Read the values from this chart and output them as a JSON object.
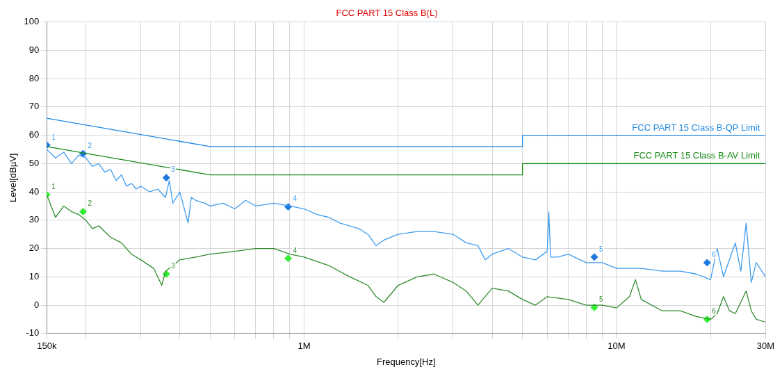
{
  "chart_data": {
    "type": "line",
    "title": "FCC PART 15 Class B(L)",
    "xlabel": "Frequency[Hz]",
    "ylabel": "Level[dBµV]",
    "log": "x",
    "grid": true,
    "legend": false,
    "xlim": [
      150000,
      30000000
    ],
    "xticks": [
      {
        "value": 150000,
        "label": "150k"
      },
      {
        "value": 200000,
        "label": null
      },
      {
        "value": 300000,
        "label": null
      },
      {
        "value": 400000,
        "label": null
      },
      {
        "value": 500000,
        "label": null
      },
      {
        "value": 600000,
        "label": null
      },
      {
        "value": 700000,
        "label": null
      },
      {
        "value": 800000,
        "label": null
      },
      {
        "value": 900000,
        "label": null
      },
      {
        "value": 1000000,
        "label": "1M"
      },
      {
        "value": 2000000,
        "label": null
      },
      {
        "value": 3000000,
        "label": null
      },
      {
        "value": 4000000,
        "label": null
      },
      {
        "value": 5000000,
        "label": null
      },
      {
        "value": 6000000,
        "label": null
      },
      {
        "value": 7000000,
        "label": null
      },
      {
        "value": 8000000,
        "label": null
      },
      {
        "value": 9000000,
        "label": null
      },
      {
        "value": 10000000,
        "label": "10M"
      },
      {
        "value": 20000000,
        "label": null
      },
      {
        "value": 30000000,
        "label": "30M"
      }
    ],
    "ylim": [
      -10,
      100
    ],
    "yticks": [
      -10,
      0,
      10,
      20,
      30,
      40,
      50,
      60,
      70,
      80,
      90,
      100
    ],
    "series": [
      {
        "name": "FCC PART 15 Class B-QP Limit",
        "type": "line",
        "color": "#1e88e5",
        "x": [
          150000,
          500000,
          5000000,
          5000000,
          30000000
        ],
        "values": [
          66,
          56,
          56,
          60,
          60
        ]
      },
      {
        "name": "FCC PART 15 Class B-AV Limit",
        "type": "line",
        "color": "#138a13",
        "x": [
          150000,
          500000,
          5000000,
          5000000,
          30000000
        ],
        "values": [
          56,
          46,
          46,
          50,
          50
        ]
      },
      {
        "type": "line",
        "color": "#3d9cf0",
        "x": [
          150000,
          160000,
          170000,
          180000,
          190000,
          200000,
          210000,
          220000,
          230000,
          240000,
          250000,
          260000,
          270000,
          280000,
          290000,
          300000,
          320000,
          340000,
          360000,
          370000,
          380000,
          400000,
          425000,
          435000,
          450000,
          480000,
          500000,
          550000,
          600000,
          650000,
          700000,
          800000,
          900000,
          1000000,
          1100000,
          1200000,
          1300000,
          1500000,
          1600000,
          1700000,
          1800000,
          2000000,
          2300000,
          2600000,
          3000000,
          3300000,
          3600000,
          3800000,
          4000000,
          4500000,
          5000000,
          5500000,
          6000000,
          6070000,
          6150000,
          6500000,
          7000000,
          8000000,
          9000000,
          10000000,
          12000000,
          14000000,
          16000000,
          18000000,
          20000000,
          21000000,
          22000000,
          24000000,
          25000000,
          26000000,
          27000000,
          28000000,
          30000000
        ],
        "values": [
          55,
          52,
          54,
          50,
          53,
          52,
          49,
          50,
          47,
          48,
          44,
          46,
          42,
          43,
          41,
          42,
          40,
          41,
          38,
          44,
          36,
          40,
          29,
          38,
          37,
          36,
          35,
          36,
          34,
          37,
          35,
          36,
          35,
          34,
          32,
          31,
          29,
          27,
          25,
          21,
          23,
          25,
          26,
          26,
          25,
          22,
          21,
          16,
          18,
          20,
          17,
          16,
          19,
          33,
          17,
          17,
          18,
          15,
          15,
          13,
          13,
          12,
          12,
          11,
          9,
          20,
          10,
          22,
          12,
          29,
          8,
          15,
          10
        ]
      },
      {
        "type": "line",
        "color": "#2e8b2e",
        "x": [
          150000,
          160000,
          170000,
          180000,
          190000,
          200000,
          210000,
          220000,
          240000,
          260000,
          280000,
          300000,
          330000,
          350000,
          360000,
          380000,
          400000,
          450000,
          500000,
          600000,
          700000,
          800000,
          900000,
          1000000,
          1200000,
          1400000,
          1600000,
          1700000,
          1800000,
          2000000,
          2300000,
          2600000,
          3000000,
          3300000,
          3600000,
          4000000,
          4500000,
          5000000,
          5500000,
          6000000,
          7000000,
          8000000,
          9000000,
          10000000,
          11000000,
          11500000,
          12000000,
          14000000,
          16000000,
          18000000,
          20000000,
          21000000,
          22000000,
          23000000,
          24000000,
          26000000,
          27000000,
          28000000,
          30000000
        ],
        "values": [
          39,
          31,
          35,
          33,
          32,
          30,
          27,
          28,
          24,
          22,
          18,
          16,
          13,
          7,
          12,
          14,
          16,
          17,
          18,
          19,
          20,
          20,
          18,
          17,
          14,
          10,
          7,
          3,
          1,
          7,
          10,
          11,
          8,
          5,
          0,
          6,
          5,
          2,
          0,
          3,
          2,
          0,
          0,
          -1,
          3,
          9,
          2,
          -2,
          -2,
          -4,
          -5,
          -3,
          3,
          -2,
          -3,
          5,
          -2,
          -5,
          -6
        ]
      },
      {
        "type": "scatter",
        "marker": "diamond",
        "color": "#1f78e0",
        "x": [
          150000,
          196000,
          362000,
          889000,
          8490000,
          19500000
        ],
        "values": [
          56.5,
          53.5,
          45,
          34.7,
          17,
          15
        ]
      },
      {
        "type": "scatter",
        "marker": "diamond",
        "color": "#33ee33",
        "x": [
          150000,
          196000,
          362000,
          889000,
          8490000,
          19500000
        ],
        "values": [
          39,
          33,
          11,
          16.5,
          -0.8,
          -5
        ]
      }
    ],
    "annotations": [
      {
        "text": "1",
        "x": 150000,
        "y": 56.5
      },
      {
        "text": "2",
        "x": 196000,
        "y": 53.5
      },
      {
        "text": "3",
        "x": 362000,
        "y": 45
      },
      {
        "text": "4",
        "x": 889000,
        "y": 34.7
      },
      {
        "text": "5",
        "x": 8490000,
        "y": 17
      },
      {
        "text": "6",
        "x": 19500000,
        "y": 15
      },
      {
        "text": "1",
        "x": 150000,
        "y": 39
      },
      {
        "text": "2",
        "x": 196000,
        "y": 33
      },
      {
        "text": "3",
        "x": 362000,
        "y": 11
      },
      {
        "text": "4",
        "x": 889000,
        "y": 16.5
      },
      {
        "text": "5",
        "x": 8490000,
        "y": -0.8
      },
      {
        "text": "6",
        "x": 19500000,
        "y": -5
      }
    ]
  }
}
